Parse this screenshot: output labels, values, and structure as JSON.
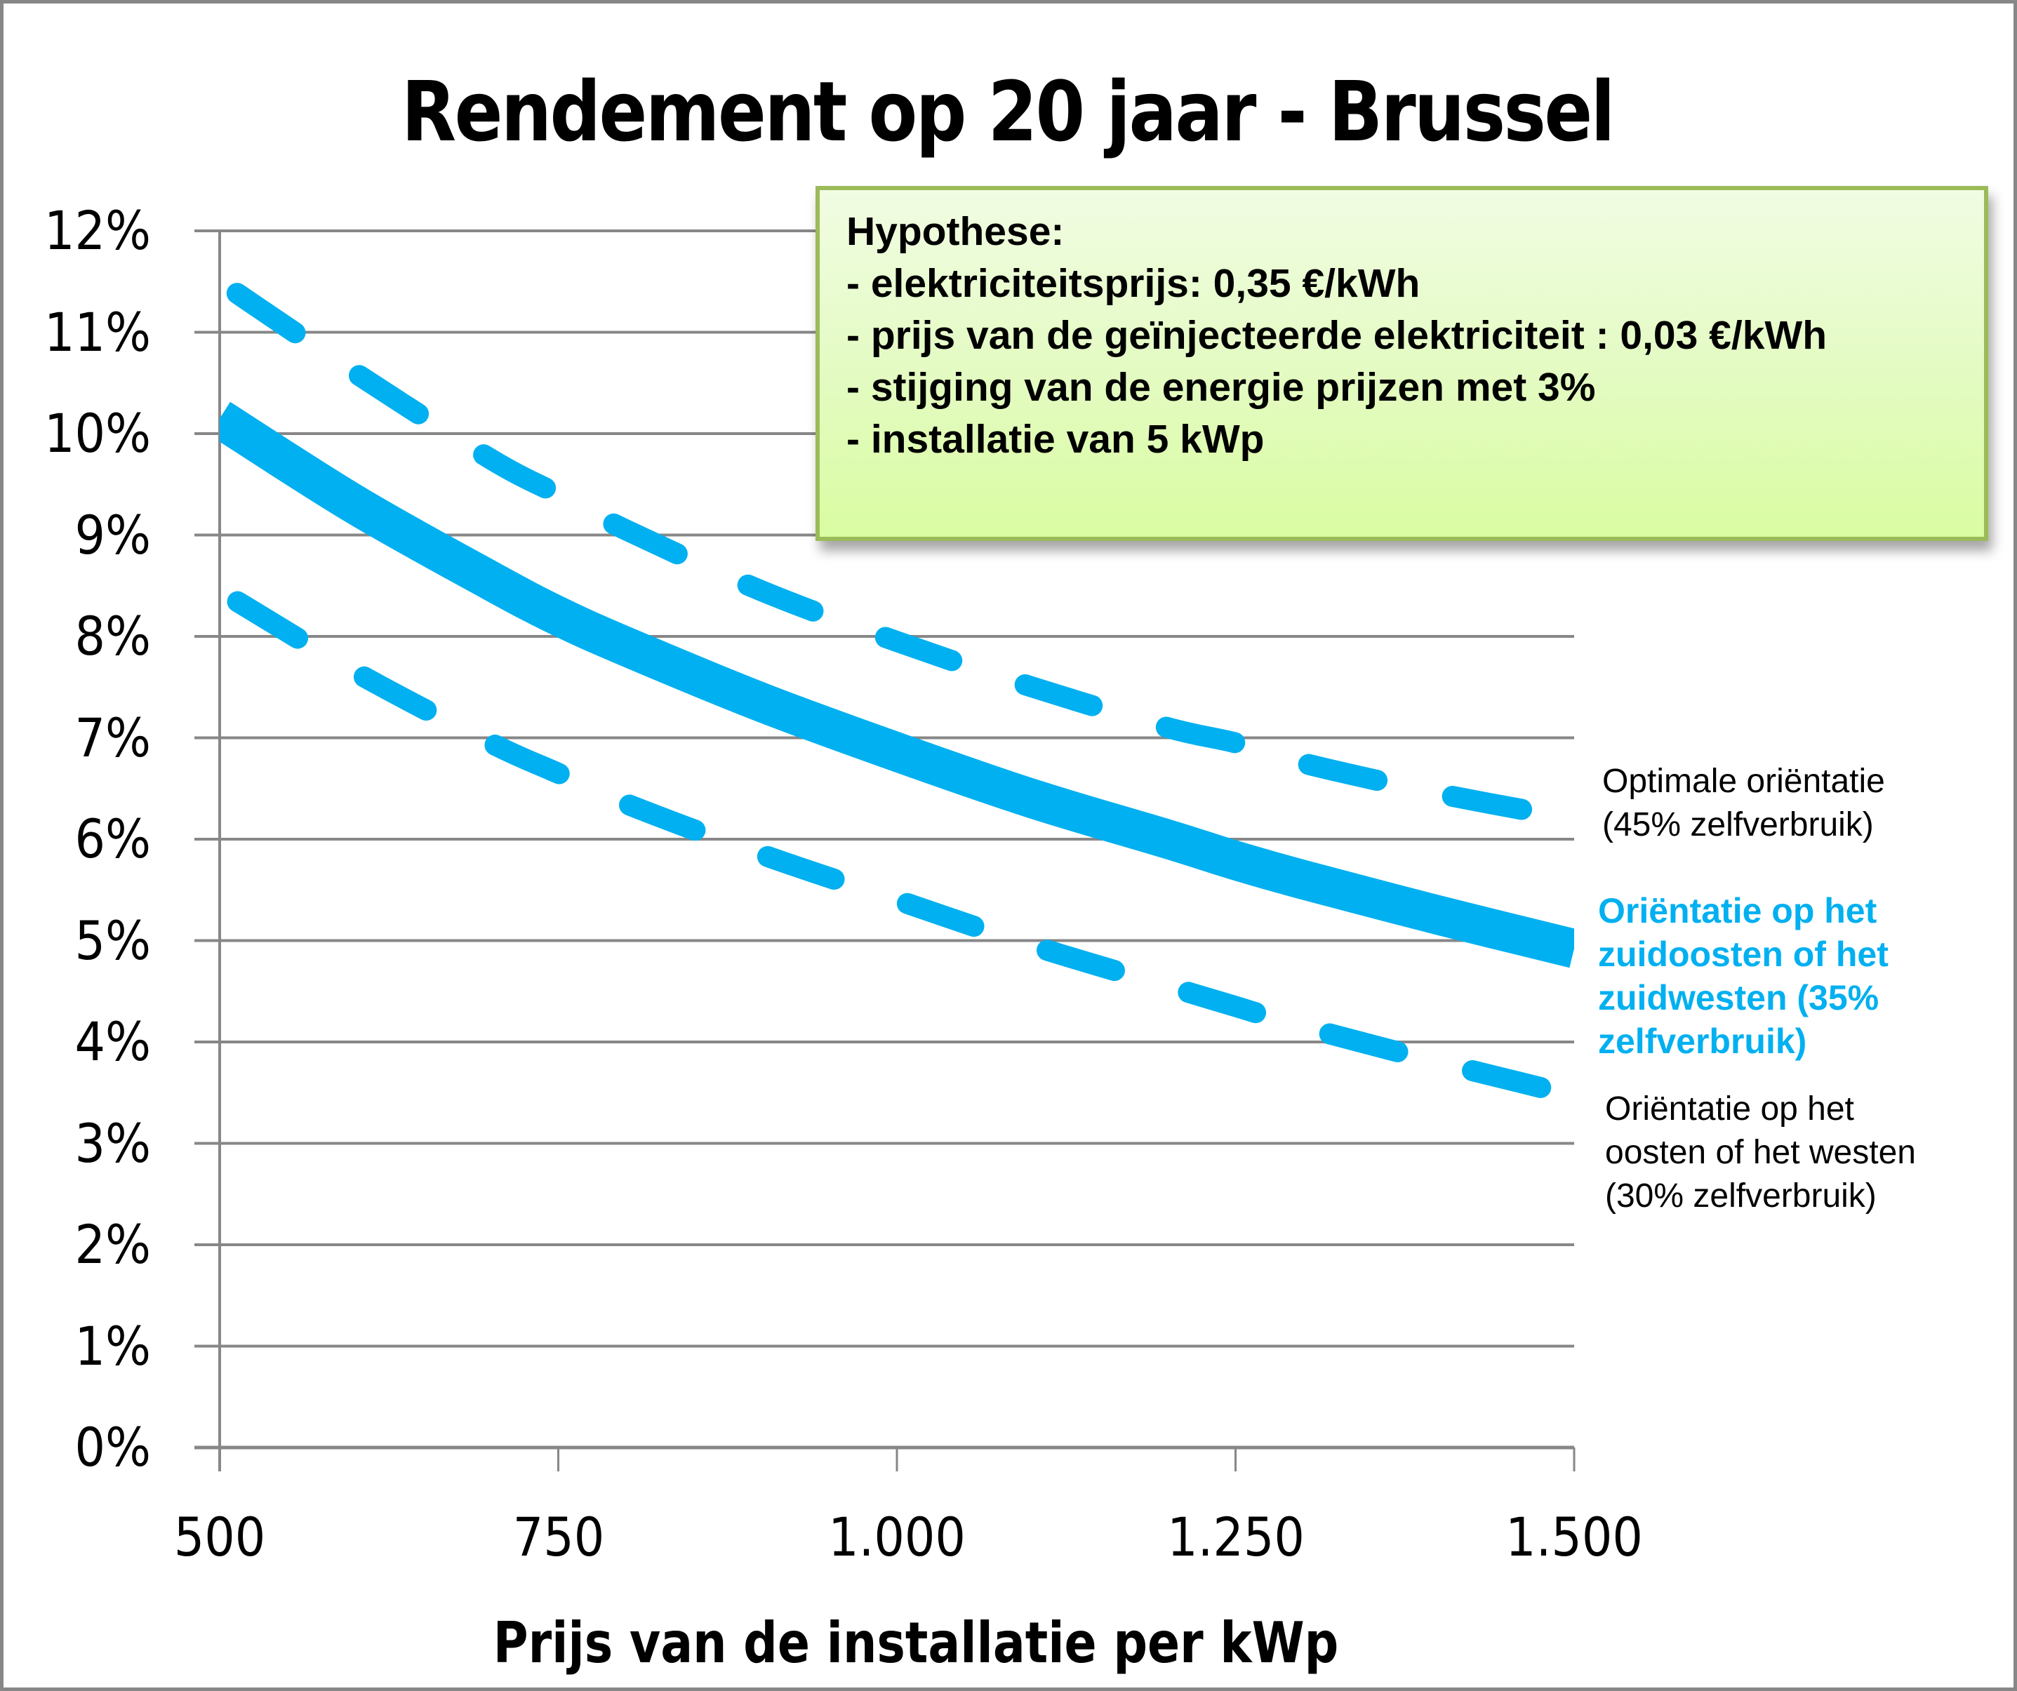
{
  "chart_data": {
    "type": "line",
    "title": "Rendement op 20 jaar - Brussel",
    "xlabel": "Prijs van de installatie per kWp",
    "ylabel": "",
    "xlim": [
      500,
      1500
    ],
    "ylim": [
      0,
      0.12
    ],
    "grid": "horizontal",
    "x_tick_labels": [
      "500",
      "750",
      "1.000",
      "1.250",
      "1.500"
    ],
    "y_tick_labels": [
      "12%",
      "11%",
      "10%",
      "9%",
      "8%",
      "7%",
      "6%",
      "5%",
      "4%",
      "3%",
      "2%",
      "1%",
      "0%"
    ],
    "x": [
      500,
      600,
      700,
      750,
      800,
      900,
      1000,
      1100,
      1200,
      1250,
      1300,
      1400,
      1500
    ],
    "series": [
      {
        "name": "Optimale oriëntatie (45% zelfverbruik)",
        "style": "dashed",
        "color": "#00b0f0",
        "values": [
          0.115,
          0.106,
          0.0975,
          0.094,
          0.0905,
          0.0845,
          0.0795,
          0.075,
          0.071,
          0.0695,
          0.0675,
          0.0645,
          0.062
        ]
      },
      {
        "name": "Oriëntatie op het zuidoosten of het zuidwesten (35% zelfverbruik)",
        "style": "solid",
        "color": "#00b0f0",
        "values": [
          0.1015,
          0.093,
          0.0855,
          0.082,
          0.079,
          0.0735,
          0.0686,
          0.064,
          0.06,
          0.0579,
          0.056,
          0.0525,
          0.0492
        ]
      },
      {
        "name": "Oriëntatie op het oosten of het westen (30% zelfverbruik)",
        "style": "dashed",
        "color": "#00b0f0",
        "values": [
          0.0845,
          0.0765,
          0.0695,
          0.0665,
          0.0635,
          0.0585,
          0.054,
          0.0495,
          0.0455,
          0.0435,
          0.0415,
          0.038,
          0.0347
        ]
      }
    ],
    "annotations": [
      "Hypothese:",
      "- elektriciteitsprijs: 0,35 €/kWh",
      "- prijs van de geïnjecteerde elektriciteit : 0,03 €/kWh",
      "- stijging van de energie prijzen met 3%",
      "- installatie van 5 kWp"
    ],
    "legend_position": "right (inline labels)"
  },
  "title": "Rendement op 20 jaar - Brussel",
  "x_axis": {
    "label": "Prijs van de installatie per kWp",
    "ticks": [
      "500",
      "750",
      "1.000",
      "1.250",
      "1.500"
    ]
  },
  "y_axis": {
    "ticks": [
      "12%",
      "11%",
      "10%",
      "9%",
      "8%",
      "7%",
      "6%",
      "5%",
      "4%",
      "3%",
      "2%",
      "1%",
      "0%"
    ]
  },
  "hypothesis": {
    "heading": "Hypothese:",
    "lines": [
      "- elektriciteitsprijs: 0,35 €/kWh",
      "- prijs van de geïnjecteerde elektriciteit : 0,03 €/kWh",
      "- stijging van de energie prijzen met 3%",
      "- installatie van 5 kWp"
    ]
  },
  "labels": {
    "optimal": [
      "Optimale oriëntatie",
      "(45% zelfverbruik)"
    ],
    "southeast": [
      "Oriëntatie op het",
      "zuidoosten of het",
      "zuidwesten (35%",
      "zelfverbruik)"
    ],
    "eastwest": [
      "Oriëntatie op het",
      "oosten of het westen",
      "(30% zelfverbruik)"
    ]
  },
  "colors": {
    "line": "#00b0f0",
    "grid": "#878787",
    "box_border": "#9bbb59",
    "box_fill": "#e4fbc4"
  }
}
